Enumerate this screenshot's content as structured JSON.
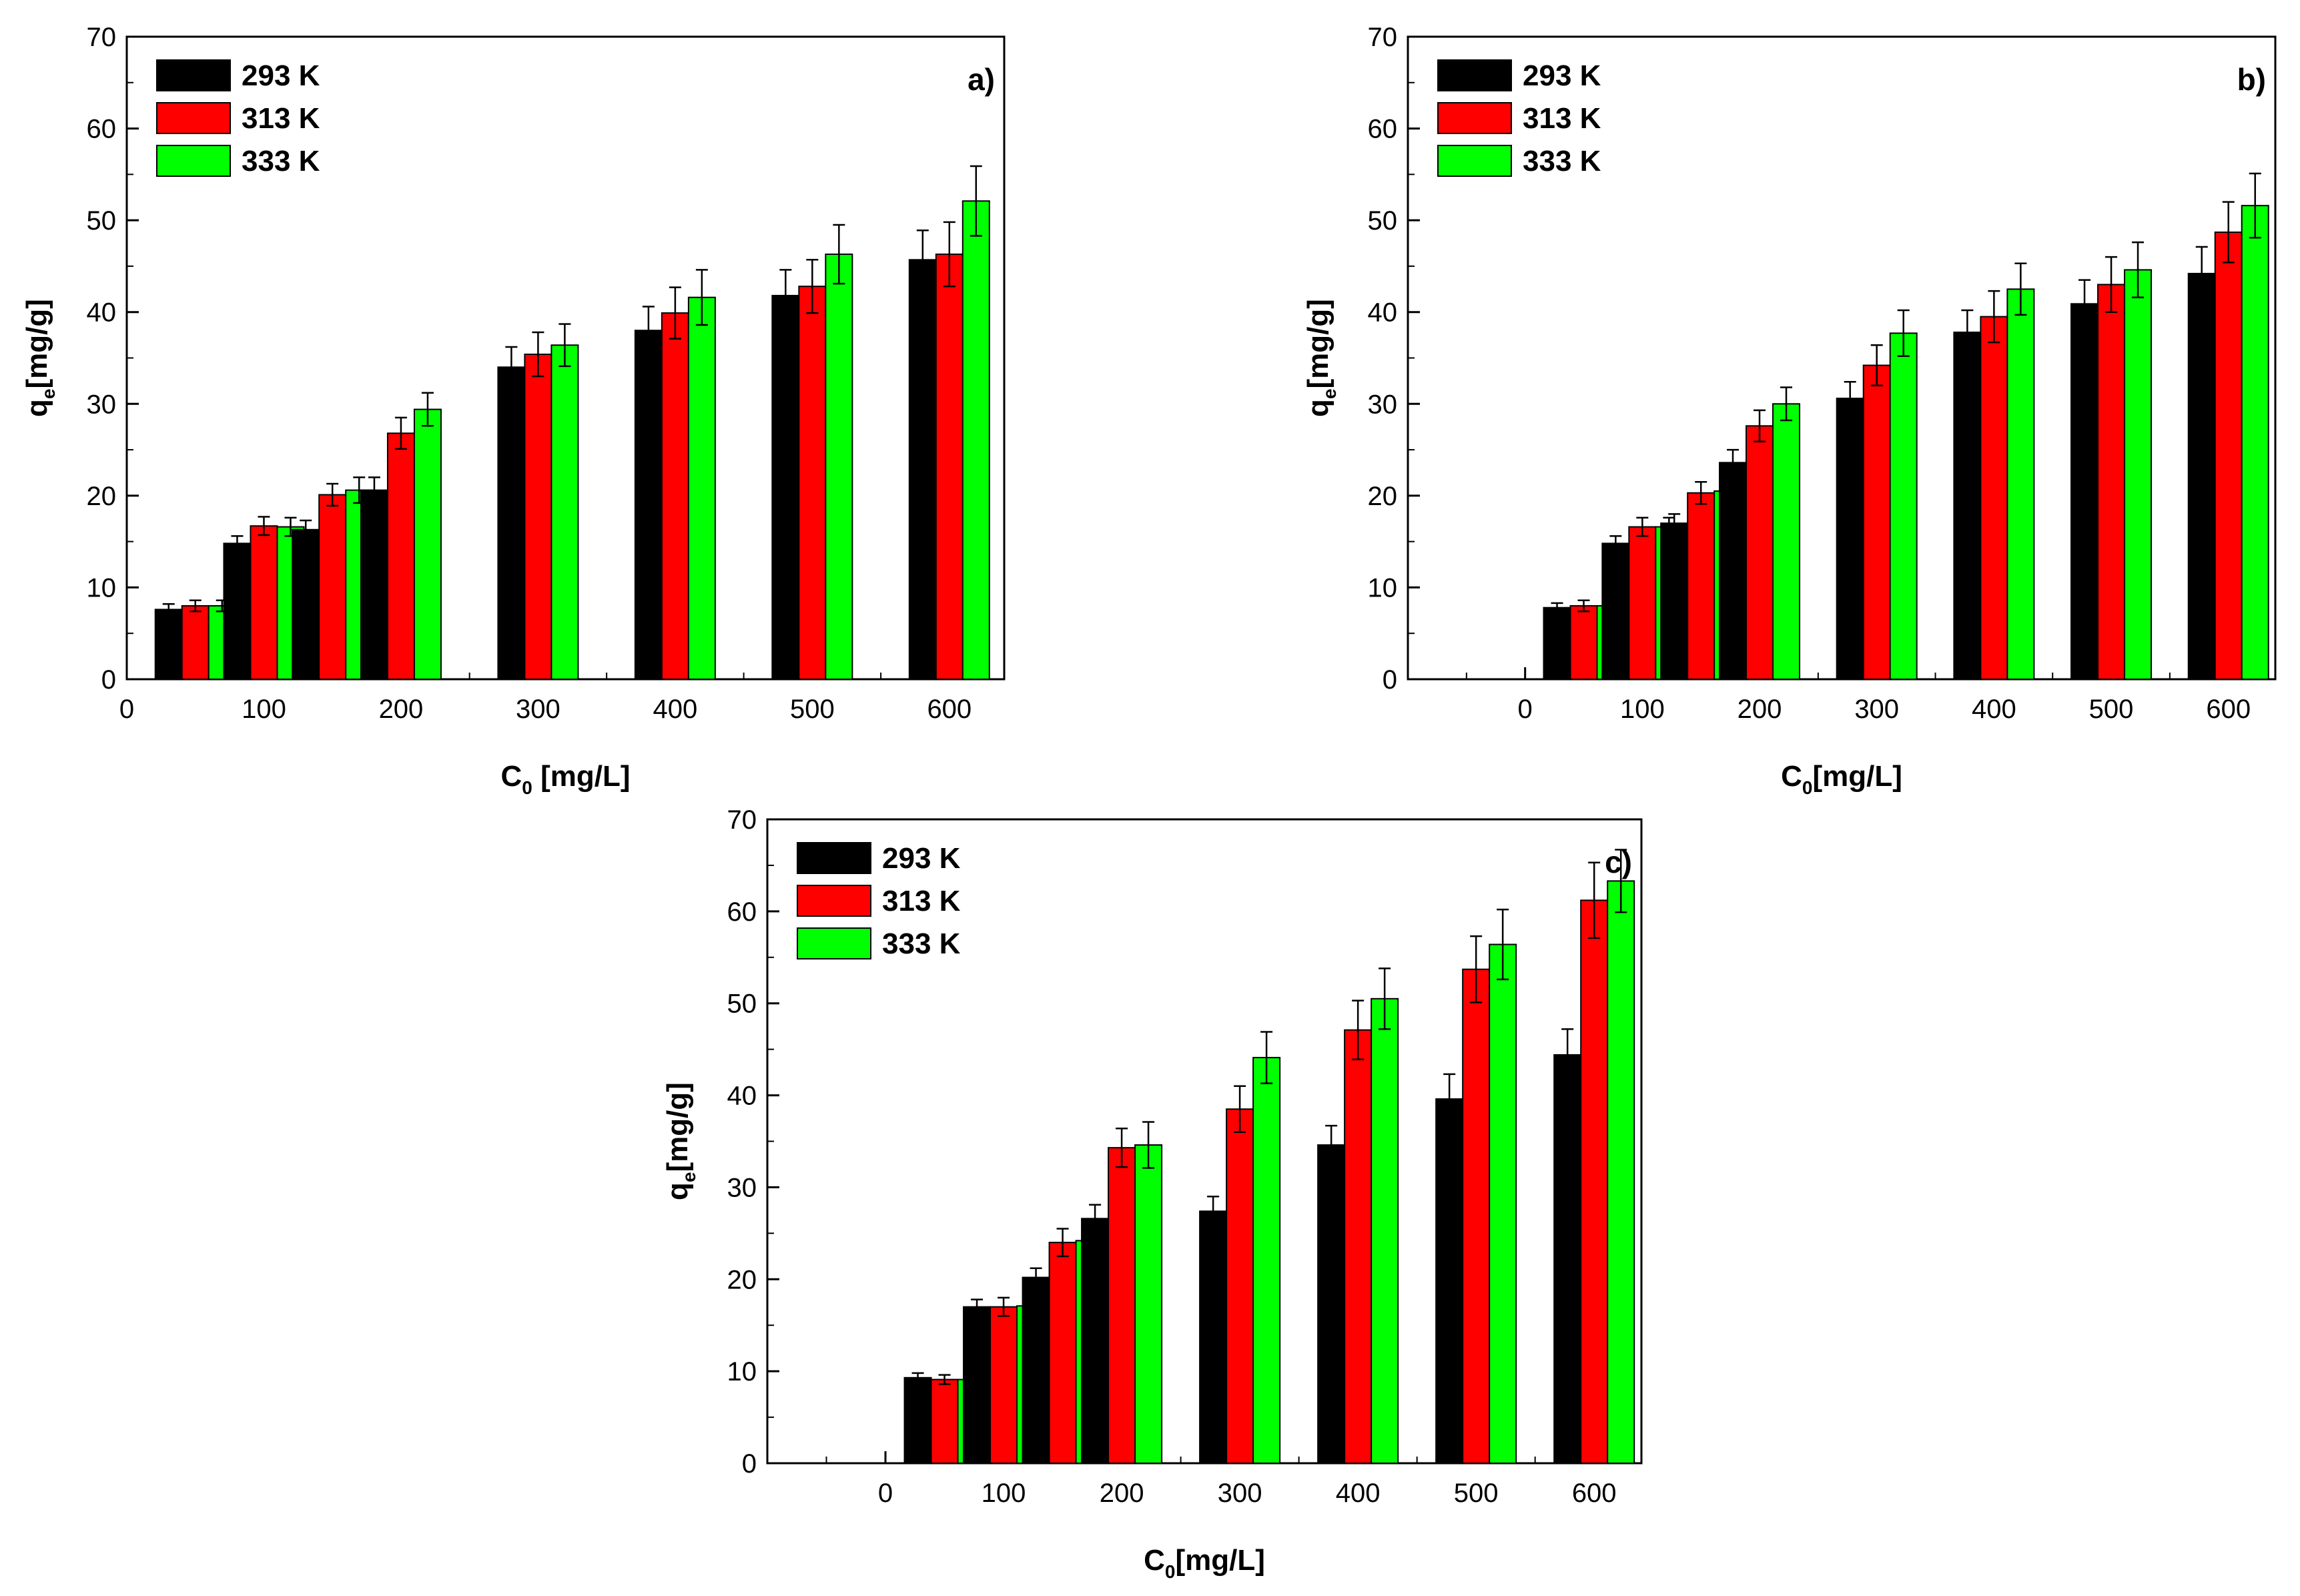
{
  "chart_data": [
    {
      "type": "bar",
      "panel_label": "a)",
      "title": "",
      "xlabel": "C",
      "xlabel_sub": "0",
      "xlabel_unit": " [mg/L]",
      "ylabel": "q",
      "ylabel_sub": "e",
      "ylabel_unit": "[mg/g]",
      "xlim": [
        0,
        640
      ],
      "ylim": [
        0,
        70
      ],
      "xticks": [
        0,
        100,
        200,
        300,
        400,
        500,
        600
      ],
      "yticks": [
        0,
        10,
        20,
        30,
        40,
        50,
        60,
        70
      ],
      "legend_position": "top-left",
      "groups": [
        {
          "x": 50,
          "values": [
            7.6,
            8.0,
            8.0
          ],
          "errors": [
            0.6,
            0.6,
            0.6
          ]
        },
        {
          "x": 100,
          "values": [
            14.8,
            16.7,
            16.6
          ],
          "errors": [
            0.8,
            1.0,
            1.0
          ]
        },
        {
          "x": 150,
          "values": [
            16.3,
            20.1,
            20.6
          ],
          "errors": [
            1.0,
            1.2,
            1.4
          ]
        },
        {
          "x": 200,
          "values": [
            20.6,
            26.8,
            29.4
          ],
          "errors": [
            1.4,
            1.7,
            1.8
          ]
        },
        {
          "x": 300,
          "values": [
            34.0,
            35.4,
            36.4
          ],
          "errors": [
            2.2,
            2.4,
            2.3
          ]
        },
        {
          "x": 400,
          "values": [
            38.0,
            39.9,
            41.6
          ],
          "errors": [
            2.6,
            2.8,
            3.0
          ]
        },
        {
          "x": 500,
          "values": [
            41.8,
            42.8,
            46.3
          ],
          "errors": [
            2.8,
            2.9,
            3.2
          ]
        },
        {
          "x": 600,
          "values": [
            45.7,
            46.3,
            52.1
          ],
          "errors": [
            3.2,
            3.5,
            3.8
          ]
        }
      ]
    },
    {
      "type": "bar",
      "panel_label": "b)",
      "title": "",
      "xlabel": "C",
      "xlabel_sub": "0",
      "xlabel_unit": "[mg/L]",
      "ylabel": "q",
      "ylabel_sub": "e",
      "ylabel_unit": "[mg/g]",
      "xlim": [
        -100,
        640
      ],
      "ylim": [
        0,
        70
      ],
      "xticks": [
        0,
        100,
        200,
        300,
        400,
        500,
        600
      ],
      "yticks": [
        0,
        10,
        20,
        30,
        40,
        50,
        60,
        70
      ],
      "legend_position": "top-left",
      "groups": [
        {
          "x": 50,
          "values": [
            7.8,
            8.0,
            8.0
          ],
          "errors": [
            0.5,
            0.6,
            0.6
          ]
        },
        {
          "x": 100,
          "values": [
            14.8,
            16.6,
            16.6
          ],
          "errors": [
            0.8,
            1.0,
            1.0
          ]
        },
        {
          "x": 150,
          "values": [
            17.0,
            20.3,
            20.5
          ],
          "errors": [
            1.0,
            1.2,
            1.4
          ]
        },
        {
          "x": 200,
          "values": [
            23.6,
            27.6,
            30.0
          ],
          "errors": [
            1.4,
            1.7,
            1.8
          ]
        },
        {
          "x": 300,
          "values": [
            30.6,
            34.2,
            37.7
          ],
          "errors": [
            1.8,
            2.2,
            2.5
          ]
        },
        {
          "x": 400,
          "values": [
            37.8,
            39.5,
            42.5
          ],
          "errors": [
            2.4,
            2.8,
            2.8
          ]
        },
        {
          "x": 500,
          "values": [
            40.9,
            43.0,
            44.6
          ],
          "errors": [
            2.6,
            3.0,
            3.0
          ]
        },
        {
          "x": 600,
          "values": [
            44.2,
            48.7,
            51.6
          ],
          "errors": [
            2.9,
            3.3,
            3.5
          ]
        }
      ]
    },
    {
      "type": "bar",
      "panel_label": "c)",
      "title": "",
      "xlabel": "C",
      "xlabel_sub": "0",
      "xlabel_unit": "[mg/L]",
      "ylabel": "q",
      "ylabel_sub": "e",
      "ylabel_unit": "[mg/g]",
      "xlim": [
        -100,
        640
      ],
      "ylim": [
        0,
        70
      ],
      "xticks": [
        0,
        100,
        200,
        300,
        400,
        500,
        600
      ],
      "yticks": [
        0,
        10,
        20,
        30,
        40,
        50,
        60,
        70
      ],
      "legend_position": "top-left",
      "groups": [
        {
          "x": 50,
          "values": [
            9.3,
            9.1,
            9.1
          ],
          "errors": [
            0.5,
            0.5,
            0.5
          ]
        },
        {
          "x": 100,
          "values": [
            17.0,
            17.0,
            17.1
          ],
          "errors": [
            0.8,
            1.0,
            1.0
          ]
        },
        {
          "x": 150,
          "values": [
            20.2,
            24.0,
            24.2
          ],
          "errors": [
            1.0,
            1.5,
            1.6
          ]
        },
        {
          "x": 200,
          "values": [
            26.6,
            34.3,
            34.6
          ],
          "errors": [
            1.5,
            2.1,
            2.5
          ]
        },
        {
          "x": 300,
          "values": [
            27.4,
            38.5,
            44.1
          ],
          "errors": [
            1.6,
            2.5,
            2.8
          ]
        },
        {
          "x": 400,
          "values": [
            34.6,
            47.1,
            50.5
          ],
          "errors": [
            2.1,
            3.2,
            3.3
          ]
        },
        {
          "x": 500,
          "values": [
            39.6,
            53.7,
            56.4
          ],
          "errors": [
            2.7,
            3.6,
            3.8
          ]
        },
        {
          "x": 600,
          "values": [
            44.4,
            61.2,
            63.3
          ],
          "errors": [
            2.8,
            4.1,
            3.4
          ]
        }
      ]
    }
  ],
  "series": [
    {
      "name": "293 K",
      "color": "#000000"
    },
    {
      "name": "313 K",
      "color": "#ff0000"
    },
    {
      "name": "333 K",
      "color": "#00ff00"
    }
  ]
}
